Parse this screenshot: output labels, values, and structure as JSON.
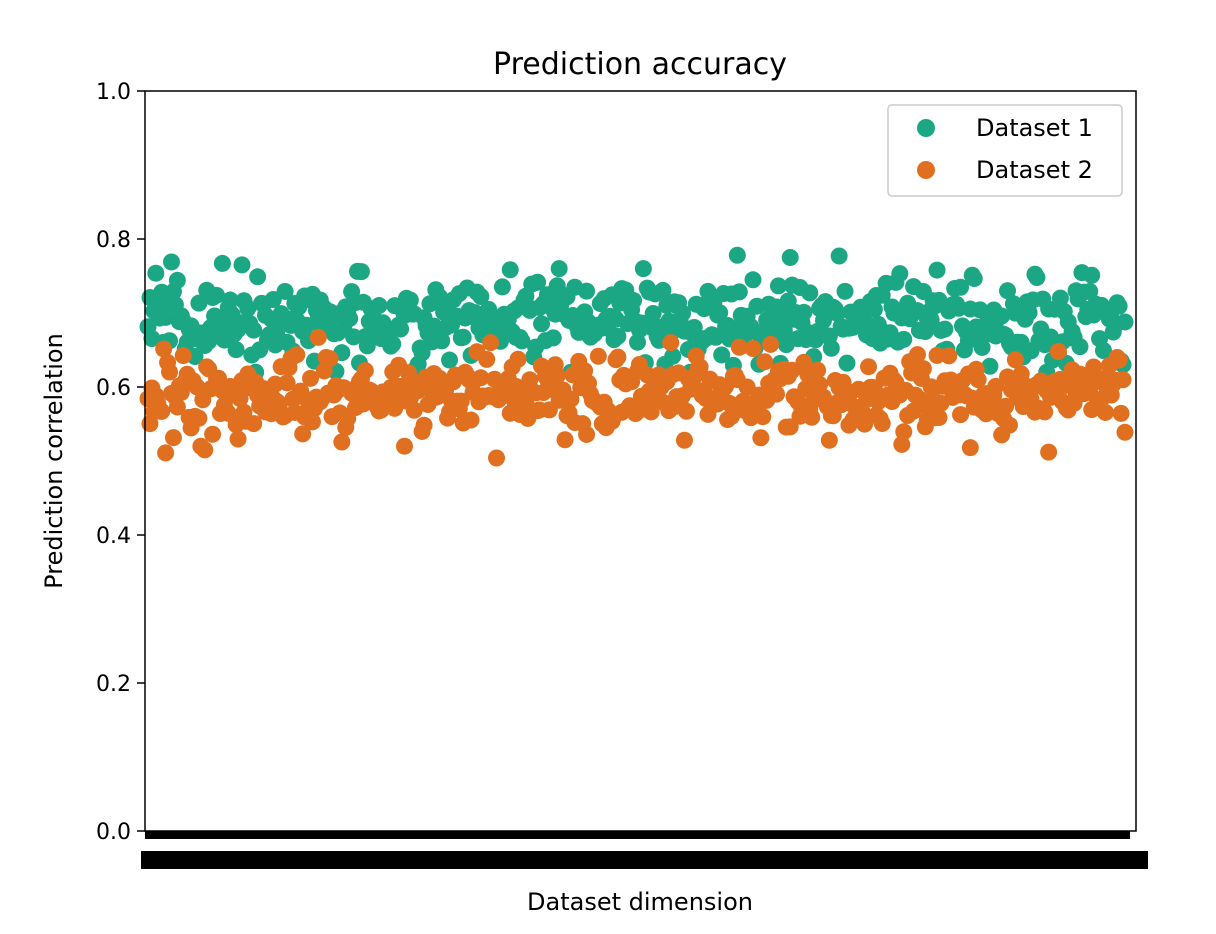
{
  "chart_data": {
    "type": "scatter",
    "title": "Prediction accuracy",
    "xlabel": "Dataset dimension",
    "ylabel": "Prediction correlation",
    "ylim": [
      0.0,
      1.0
    ],
    "y_ticks": [
      "0.0",
      "0.2",
      "0.4",
      "0.6",
      "0.8",
      "1.0"
    ],
    "x_tick_labels_note": "x tick labels are overplotted and illegible",
    "legend_position": "top-right",
    "grid": false,
    "x_count": 500,
    "series": [
      {
        "name": "Dataset 1",
        "color": "#1ba784",
        "center": 0.69,
        "spread": 0.028,
        "outliers": [
          [
            12,
            0.769
          ],
          [
            38,
            0.767
          ],
          [
            48,
            0.765
          ],
          [
            301,
            0.778
          ],
          [
            328,
            0.775
          ],
          [
            353,
            0.777
          ],
          [
            403,
            0.758
          ],
          [
            454,
            0.748
          ],
          [
            482,
            0.751
          ]
        ]
      },
      {
        "name": "Dataset 2",
        "color": "#e07020",
        "center": 0.59,
        "spread": 0.026,
        "outliers": [
          [
            9,
            0.511
          ],
          [
            29,
            0.515
          ],
          [
            87,
            0.667
          ],
          [
            175,
            0.66
          ],
          [
            178,
            0.504
          ],
          [
            274,
            0.528
          ],
          [
            309,
            0.652
          ],
          [
            348,
            0.528
          ],
          [
            420,
            0.518
          ],
          [
            460,
            0.512
          ],
          [
            465,
            0.648
          ]
        ]
      }
    ]
  }
}
